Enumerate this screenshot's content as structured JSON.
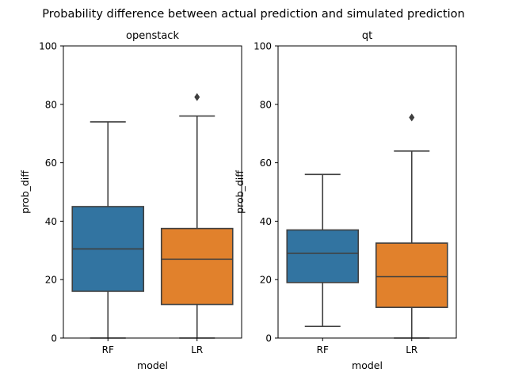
{
  "chart_data": {
    "suptitle": "Probability difference between actual prediction and simulated prediction",
    "panels": [
      {
        "type": "box",
        "title": "openstack",
        "xlabel": "model",
        "ylabel": "prob_diff",
        "ylim": [
          0,
          100
        ],
        "yticks": [
          0,
          20,
          40,
          60,
          80,
          100
        ],
        "categories": [
          "RF",
          "LR"
        ],
        "boxes": [
          {
            "name": "RF",
            "color": "#3274a1",
            "whisker_low": 0,
            "q1": 16,
            "median": 30.5,
            "q3": 45,
            "whisker_high": 74,
            "outliers": []
          },
          {
            "name": "LR",
            "color": "#e1812c",
            "whisker_low": 0,
            "q1": 11.5,
            "median": 27,
            "q3": 37.5,
            "whisker_high": 76,
            "outliers": [
              82.5
            ]
          }
        ]
      },
      {
        "type": "box",
        "title": "qt",
        "xlabel": "model",
        "ylabel": "prob_diff",
        "ylim": [
          0,
          100
        ],
        "yticks": [
          0,
          20,
          40,
          60,
          80,
          100
        ],
        "categories": [
          "RF",
          "LR"
        ],
        "boxes": [
          {
            "name": "RF",
            "color": "#3274a1",
            "whisker_low": 4,
            "q1": 19,
            "median": 29,
            "q3": 37,
            "whisker_high": 56,
            "outliers": []
          },
          {
            "name": "LR",
            "color": "#e1812c",
            "whisker_low": 0,
            "q1": 10.5,
            "median": 21,
            "q3": 32.5,
            "whisker_high": 64,
            "outliers": [
              75.5
            ]
          }
        ]
      }
    ],
    "line_color": "#3f3f3f"
  }
}
